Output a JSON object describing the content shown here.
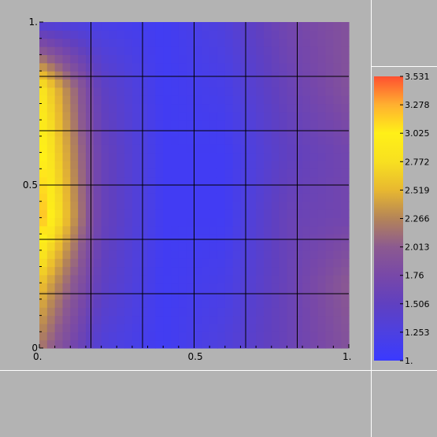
{
  "chart_data": {
    "type": "heatmap",
    "title": "",
    "xlabel": "",
    "ylabel": "",
    "xlim": [
      0,
      1
    ],
    "ylim": [
      0,
      1
    ],
    "x_tick_labels": [
      {
        "value": 0,
        "label": "0."
      },
      {
        "value": 0.5,
        "label": "0.5"
      },
      {
        "value": 1,
        "label": "1."
      }
    ],
    "y_tick_labels": [
      {
        "value": 0,
        "label": "0"
      },
      {
        "value": 0.5,
        "label": "0.5"
      },
      {
        "value": 1,
        "label": "1."
      }
    ],
    "grid": true,
    "grid_divisions": 6,
    "colorbar": {
      "placement": "right",
      "min": 1.0,
      "max": 3.531,
      "tick_labels": [
        "1.",
        "1.253",
        "1.506",
        "1.76",
        "2.013",
        "2.266",
        "2.519",
        "2.772",
        "3.025",
        "3.278",
        "3.531"
      ],
      "colors": [
        "#3a3aff",
        "#4d40e0",
        "#6040c0",
        "#7848a8",
        "#8c5a90",
        "#b48458",
        "#e8b830",
        "#f8e020",
        "#fff018",
        "#ffb030",
        "#ff5030"
      ]
    },
    "x": [
      0,
      0.2,
      0.4,
      0.6,
      0.8,
      1.0
    ],
    "y": [
      0,
      0.2,
      0.4,
      0.6,
      0.8,
      1.0
    ],
    "z": [
      [
        2.2,
        1.3,
        1.1,
        1.3,
        1.6,
        1.9
      ],
      [
        2.6,
        1.5,
        1.1,
        1.2,
        1.6,
        2.0
      ],
      [
        3.3,
        1.6,
        1.1,
        1.1,
        1.6,
        1.7
      ],
      [
        3.1,
        1.6,
        1.1,
        1.1,
        1.5,
        1.7
      ],
      [
        2.9,
        1.5,
        1.1,
        1.2,
        1.6,
        1.9
      ],
      [
        1.3,
        1.2,
        1.1,
        1.3,
        1.7,
        1.9
      ]
    ]
  }
}
